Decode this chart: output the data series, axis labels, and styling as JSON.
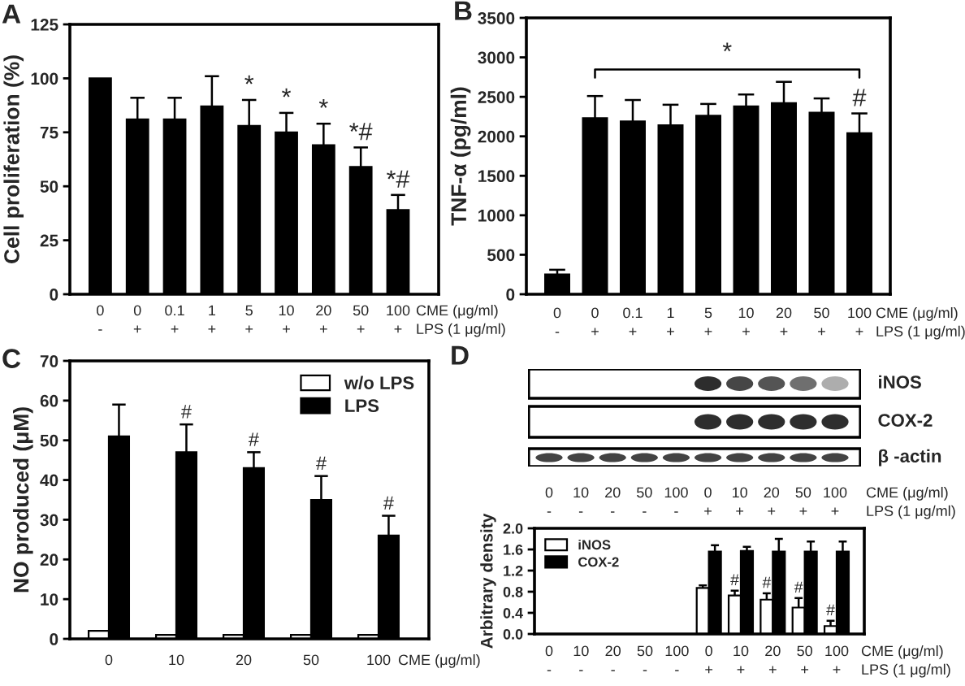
{
  "chart_data": [
    {
      "type": "bar",
      "title": "A",
      "ylabel": "Cell proliferation (%)",
      "xlabel": "CME (μg/ml)\nLPS (1 μg/ml)",
      "categories": [
        "0\n-",
        "0\n+",
        "0.1\n+",
        "1\n+",
        "5\n+",
        "10\n+",
        "20\n+",
        "50\n+",
        "100\n+"
      ],
      "values": [
        100,
        81,
        81,
        87,
        78,
        75,
        69,
        59,
        39
      ],
      "errors": [
        null,
        [
          81,
          91
        ],
        [
          81,
          91
        ],
        [
          87,
          101
        ],
        [
          78,
          90
        ],
        [
          75,
          84
        ],
        [
          69,
          79
        ],
        [
          59,
          68
        ],
        [
          39,
          46
        ]
      ],
      "color": "#000000",
      "ylim": [
        0,
        125
      ],
      "yticks": [
        0,
        25,
        50,
        75,
        100,
        125
      ],
      "annotations": [
        {
          "text": "*",
          "x": "5\n+",
          "y": 90
        },
        {
          "text": "*",
          "x": "10\n+",
          "y": 84
        },
        {
          "text": "*",
          "x": "20\n+",
          "y": 79
        },
        {
          "text": "*#",
          "x": "50\n+",
          "y": 68
        },
        {
          "text": "*#",
          "x": "100\n+",
          "y": 46
        }
      ]
    },
    {
      "type": "bar",
      "title": "B",
      "ylabel": "TNF-α (pg/ml)",
      "xlabel": "CME (μg/ml)\nLPS (1 μg/ml)",
      "categories": [
        "0\n-",
        "0\n+",
        "0.1\n+",
        "1\n+",
        "5\n+",
        "10\n+",
        "20\n+",
        "50\n+",
        "100\n+"
      ],
      "values": [
        250,
        2230,
        2190,
        2140,
        2260,
        2380,
        2420,
        2300,
        2040
      ],
      "errors": [
        [
          250,
          310
        ],
        [
          2230,
          2510
        ],
        [
          2190,
          2460
        ],
        [
          2140,
          2400
        ],
        [
          2260,
          2410
        ],
        [
          2380,
          2530
        ],
        [
          2420,
          2690
        ],
        [
          2300,
          2480
        ],
        [
          2040,
          2290
        ]
      ],
      "color": "#000000",
      "ylim": [
        0,
        3500
      ],
      "yticks": [
        0,
        500,
        1000,
        1500,
        2000,
        2500,
        3000,
        3500
      ],
      "annotations": [
        "*",
        {
          "text": "#",
          "x": "100\n+",
          "y": 2290
        }
      ]
    },
    {
      "type": "bar",
      "title": "C",
      "ylabel": "NO produced (μM)",
      "xlabel": "CME (μg/ml)",
      "categories": [
        "0",
        "10",
        "20",
        "50",
        "100"
      ],
      "series": [
        {
          "name": "w/o LPS",
          "color": "#ffffff",
          "values": [
            2,
            1,
            1,
            1,
            1
          ]
        },
        {
          "name": "LPS",
          "color": "#000000",
          "values": [
            51,
            47,
            43,
            35,
            26
          ],
          "errors": [
            [
              51,
              59
            ],
            [
              47,
              54
            ],
            [
              43,
              47
            ],
            [
              35,
              41
            ],
            [
              26,
              31
            ]
          ]
        }
      ],
      "ylim": [
        0,
        70
      ],
      "yticks": [
        0,
        10,
        20,
        30,
        40,
        50,
        60,
        70
      ],
      "legend": "top right",
      "annotations": [
        {
          "text": "#",
          "x": "10",
          "y": 54
        },
        {
          "text": "#",
          "x": "20",
          "y": 47
        },
        {
          "text": "#",
          "x": "50",
          "y": 41
        },
        {
          "text": "#",
          "x": "100",
          "y": 31
        }
      ]
    },
    {
      "type": "other",
      "title": "D",
      "categories": [
        "0\n-",
        "10\n-",
        "20\n-",
        "50\n-",
        "100\n-",
        "0\n+",
        "10\n+",
        "20\n+",
        "50\n+",
        "100\n+"
      ],
      "xlabel": "CME (μg/ml)\nLPS (1 μg/ml)",
      "annotations": [
        "iNOS",
        "COX-2",
        "β -actin"
      ]
    },
    {
      "type": "bar",
      "ylabel": "Arbitrary density",
      "xlabel": "CME (μg/ml)\nLPS (1 μg/ml)",
      "categories": [
        "0\n-",
        "10\n-",
        "20\n-",
        "50\n-",
        "100\n-",
        "0\n+",
        "10\n+",
        "20\n+",
        "50\n+",
        "100\n+"
      ],
      "series": [
        {
          "name": "iNOS",
          "color": "#ffffff",
          "values": [
            null,
            null,
            null,
            null,
            null,
            0.87,
            0.73,
            0.65,
            0.5,
            0.15
          ],
          "errors": [
            null,
            null,
            null,
            null,
            null,
            [
              0.87,
              0.92
            ],
            [
              0.73,
              0.82
            ],
            [
              0.65,
              0.77
            ],
            [
              0.5,
              0.68
            ],
            [
              0.15,
              0.25
            ]
          ]
        },
        {
          "name": "COX-2",
          "color": "#000000",
          "values": [
            null,
            null,
            null,
            null,
            null,
            1.56,
            1.57,
            1.56,
            1.56,
            1.56
          ],
          "errors": [
            null,
            null,
            null,
            null,
            null,
            [
              1.56,
              1.68
            ],
            [
              1.57,
              1.65
            ],
            [
              1.56,
              1.8
            ],
            [
              1.56,
              1.75
            ],
            [
              1.56,
              1.75
            ]
          ]
        }
      ],
      "ylim": [
        0,
        2
      ],
      "yticks": [
        {
          "value": 0,
          "label": "0.0"
        },
        0.4,
        0.8,
        1.2,
        1.6,
        {
          "value": 2,
          "label": "2.0"
        }
      ],
      "legend": "top left",
      "annotations": [
        {
          "text": "#",
          "x": "10\n+",
          "y": 0.82
        },
        {
          "text": "#",
          "x": "20\n+",
          "y": 0.77
        },
        {
          "text": "#",
          "x": "50\n+",
          "y": 0.68
        },
        {
          "text": "#",
          "x": "100\n+",
          "y": 0.25
        }
      ]
    }
  ]
}
